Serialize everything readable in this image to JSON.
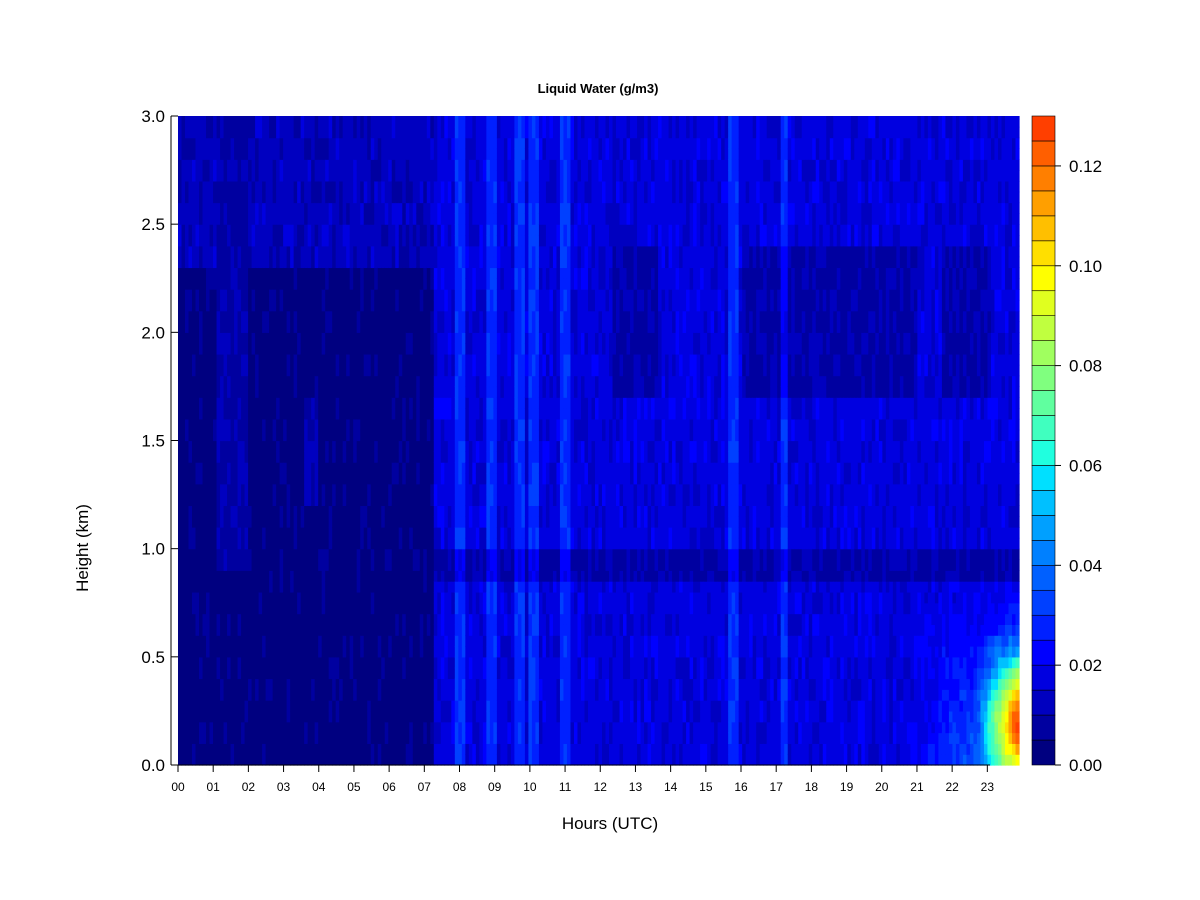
{
  "chart_data": {
    "type": "heatmap",
    "title": "Liquid Water (g/m3)",
    "xlabel": "Hours (UTC)",
    "ylabel": "Height (km)",
    "x_ticks": [
      "00",
      "01",
      "02",
      "03",
      "04",
      "05",
      "06",
      "07",
      "08",
      "09",
      "10",
      "11",
      "12",
      "13",
      "14",
      "15",
      "16",
      "17",
      "18",
      "19",
      "20",
      "21",
      "22",
      "23"
    ],
    "y_ticks": [
      "0.0",
      "0.5",
      "1.0",
      "1.5",
      "2.0",
      "2.5",
      "3.0"
    ],
    "xlim": [
      0,
      23.9
    ],
    "ylim": [
      0,
      3.0
    ],
    "colorbar": {
      "label_values": [
        "0.00",
        "0.02",
        "0.04",
        "0.06",
        "0.08",
        "0.10",
        "0.12"
      ],
      "range": [
        0,
        0.13
      ],
      "step": 0.005,
      "colors": [
        "#000080",
        "#0000a0",
        "#0000c0",
        "#0000e0",
        "#0000ff",
        "#0020ff",
        "#0040ff",
        "#0060ff",
        "#0080ff",
        "#00a0ff",
        "#00c0ff",
        "#00e0ff",
        "#20ffdf",
        "#40ffbf",
        "#60ff9f",
        "#80ff7f",
        "#a0ff5f",
        "#c0ff3f",
        "#e0ff1f",
        "#ffff00",
        "#ffdf00",
        "#ffbf00",
        "#ff9f00",
        "#ff7f00",
        "#ff5f00",
        "#ff3f00",
        "#ff1f00",
        "#e00000",
        "#c00000",
        "#a00000",
        "#800000"
      ]
    },
    "data_description_values": {
      "background_level": 0.015,
      "low_night_level": 0.0,
      "max_value_near": {
        "hour": 23.7,
        "height_km": 0.2,
        "value": 0.11
      }
    }
  }
}
